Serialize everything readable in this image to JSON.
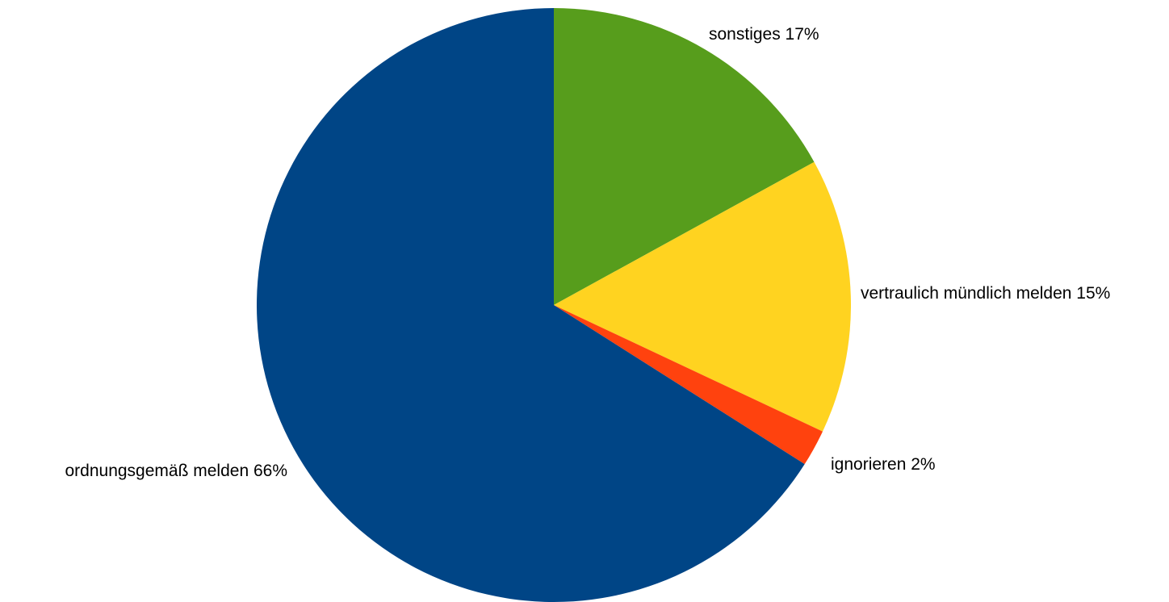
{
  "chart_data": {
    "type": "pie",
    "title": "",
    "legend": "none",
    "slices": [
      {
        "label": "sonstiges",
        "value": 17,
        "display": "sonstiges 17%",
        "color": "#579d1c"
      },
      {
        "label": "vertraulich mündlich melden",
        "value": 15,
        "display": "vertraulich mündlich melden 15%",
        "color": "#ffd320"
      },
      {
        "label": "ignorieren",
        "value": 2,
        "display": "ignorieren 2%",
        "color": "#ff420e"
      },
      {
        "label": "ordnungsgemäß melden",
        "value": 66,
        "display": "ordnungsgemäß melden 66%",
        "color": "#004586"
      }
    ]
  }
}
